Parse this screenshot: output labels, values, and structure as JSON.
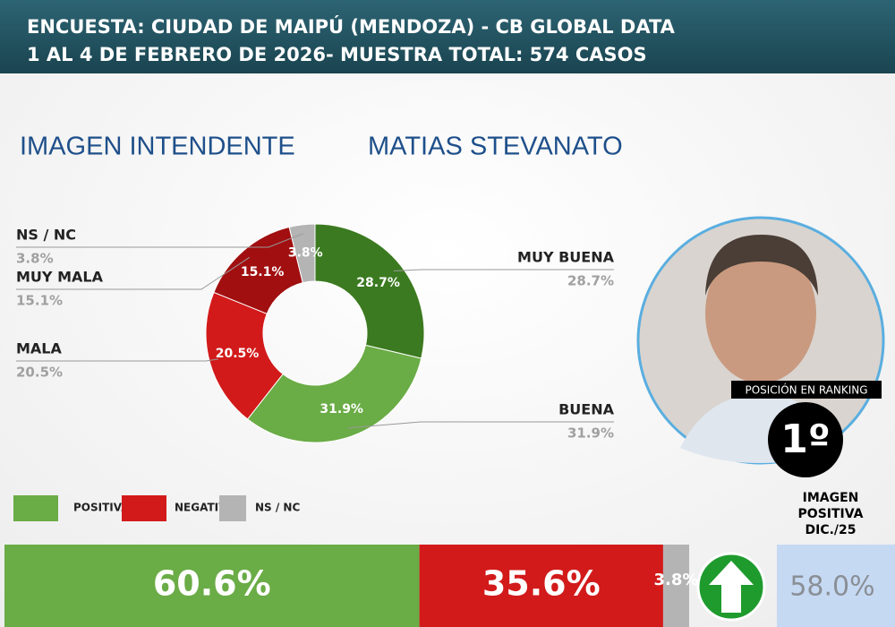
{
  "header": {
    "line1": "ENCUESTA: CIUDAD DE MAIPÚ (MENDOZA) - CB GLOBAL DATA",
    "line2": "1 AL 4 DE FEBRERO DE 2026- MUESTRA TOTAL: 574 CASOS"
  },
  "subtitle": {
    "left": "IMAGEN INTENDENTE",
    "right": "MATIAS STEVANATO"
  },
  "chart_data": [
    {
      "type": "donut",
      "categories": [
        "MUY BUENA",
        "BUENA",
        "MALA",
        "MUY MALA",
        "NS / NC"
      ],
      "values": [
        28.7,
        31.9,
        20.5,
        15.1,
        3.8
      ],
      "value_labels": [
        "28.7%",
        "31.9%",
        "20.5%",
        "15.1%",
        "3.8%"
      ],
      "colors": [
        "#3b7a20",
        "#6aac46",
        "#d21a1a",
        "#a10f10",
        "#b4b4b4"
      ]
    },
    {
      "type": "stacked-bar",
      "series": [
        {
          "name": "POSITIVA",
          "color": "#6aac46",
          "values": [
            60.6
          ],
          "value_labels": [
            "60.6%"
          ]
        },
        {
          "name": "NEGATIVA",
          "color": "#d21a1a",
          "values": [
            35.6
          ],
          "value_labels": [
            "35.6%"
          ]
        },
        {
          "name": "NS / NC",
          "color": "#b4b4b4",
          "values": [
            3.8
          ],
          "value_labels": [
            "3.8%"
          ]
        }
      ]
    }
  ],
  "ranking": {
    "label": "POSICIÓN EN RANKING",
    "value": "1º"
  },
  "previous": {
    "label": [
      "IMAGEN",
      "POSITIVA",
      "DIC./25"
    ],
    "value_label": "58.0%"
  }
}
